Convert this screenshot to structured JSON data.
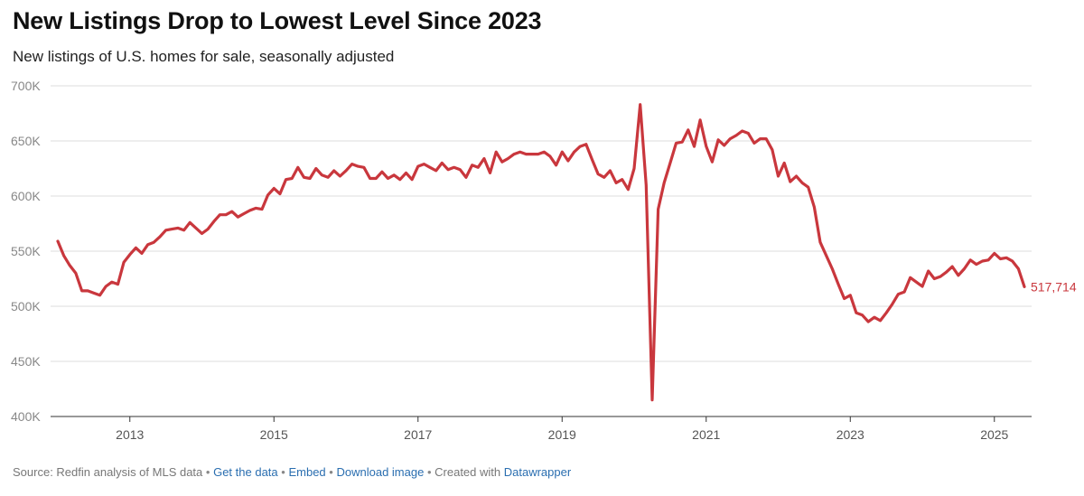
{
  "title": "New Listings Drop to Lowest Level Since 2023",
  "subtitle": "New listings of U.S. homes for sale, seasonally adjusted",
  "colors": {
    "line": "#c9373d",
    "grid": "#dddddd",
    "axis_text": "#888888",
    "link": "#2a6eb0"
  },
  "chart_data": {
    "type": "line",
    "title": "New Listings Drop to Lowest Level Since 2023",
    "subtitle": "New listings of U.S. homes for sale, seasonally adjusted",
    "xlabel": "",
    "ylabel": "",
    "xlim": [
      "2012-01",
      "2025-06"
    ],
    "ylim": [
      400000,
      700000
    ],
    "y_ticks": [
      {
        "value": 400000,
        "label": "400K"
      },
      {
        "value": 450000,
        "label": "450K"
      },
      {
        "value": 500000,
        "label": "500K"
      },
      {
        "value": 550000,
        "label": "550K"
      },
      {
        "value": 600000,
        "label": "600K"
      },
      {
        "value": 650000,
        "label": "650K"
      },
      {
        "value": 700000,
        "label": "700K"
      }
    ],
    "x_ticks": [
      {
        "value": "2013-01",
        "label": "2013"
      },
      {
        "value": "2015-01",
        "label": "2015"
      },
      {
        "value": "2017-01",
        "label": "2017"
      },
      {
        "value": "2019-01",
        "label": "2019"
      },
      {
        "value": "2021-01",
        "label": "2021"
      },
      {
        "value": "2023-01",
        "label": "2023"
      },
      {
        "value": "2025-01",
        "label": "2025"
      }
    ],
    "grid": "horizontal",
    "end_label": "517,714",
    "series": [
      {
        "name": "",
        "points": [
          [
            "2012-01",
            559000
          ],
          [
            "2012-02",
            546000
          ],
          [
            "2012-03",
            537000
          ],
          [
            "2012-04",
            530000
          ],
          [
            "2012-05",
            514000
          ],
          [
            "2012-06",
            514000
          ],
          [
            "2012-07",
            512000
          ],
          [
            "2012-08",
            510000
          ],
          [
            "2012-09",
            518000
          ],
          [
            "2012-10",
            522000
          ],
          [
            "2012-11",
            520000
          ],
          [
            "2012-12",
            540000
          ],
          [
            "2013-01",
            547000
          ],
          [
            "2013-02",
            553000
          ],
          [
            "2013-03",
            548000
          ],
          [
            "2013-04",
            556000
          ],
          [
            "2013-05",
            558000
          ],
          [
            "2013-06",
            563000
          ],
          [
            "2013-07",
            569000
          ],
          [
            "2013-08",
            570000
          ],
          [
            "2013-09",
            571000
          ],
          [
            "2013-10",
            569000
          ],
          [
            "2013-11",
            576000
          ],
          [
            "2013-12",
            571000
          ],
          [
            "2014-01",
            566000
          ],
          [
            "2014-02",
            570000
          ],
          [
            "2014-03",
            577000
          ],
          [
            "2014-04",
            583000
          ],
          [
            "2014-05",
            583000
          ],
          [
            "2014-06",
            586000
          ],
          [
            "2014-07",
            581000
          ],
          [
            "2014-08",
            584000
          ],
          [
            "2014-09",
            587000
          ],
          [
            "2014-10",
            589000
          ],
          [
            "2014-11",
            588000
          ],
          [
            "2014-12",
            601000
          ],
          [
            "2015-01",
            607000
          ],
          [
            "2015-02",
            602000
          ],
          [
            "2015-03",
            615000
          ],
          [
            "2015-04",
            616000
          ],
          [
            "2015-05",
            626000
          ],
          [
            "2015-06",
            617000
          ],
          [
            "2015-07",
            616000
          ],
          [
            "2015-08",
            625000
          ],
          [
            "2015-09",
            619000
          ],
          [
            "2015-10",
            617000
          ],
          [
            "2015-11",
            623000
          ],
          [
            "2015-12",
            618000
          ],
          [
            "2016-01",
            623000
          ],
          [
            "2016-02",
            629000
          ],
          [
            "2016-03",
            627000
          ],
          [
            "2016-04",
            626000
          ],
          [
            "2016-05",
            616000
          ],
          [
            "2016-06",
            616000
          ],
          [
            "2016-07",
            622000
          ],
          [
            "2016-08",
            616000
          ],
          [
            "2016-09",
            619000
          ],
          [
            "2016-10",
            615000
          ],
          [
            "2016-11",
            621000
          ],
          [
            "2016-12",
            615000
          ],
          [
            "2017-01",
            627000
          ],
          [
            "2017-02",
            629000
          ],
          [
            "2017-03",
            626000
          ],
          [
            "2017-04",
            623000
          ],
          [
            "2017-05",
            630000
          ],
          [
            "2017-06",
            624000
          ],
          [
            "2017-07",
            626000
          ],
          [
            "2017-08",
            624000
          ],
          [
            "2017-09",
            617000
          ],
          [
            "2017-10",
            628000
          ],
          [
            "2017-11",
            626000
          ],
          [
            "2017-12",
            634000
          ],
          [
            "2018-01",
            621000
          ],
          [
            "2018-02",
            640000
          ],
          [
            "2018-03",
            631000
          ],
          [
            "2018-04",
            634000
          ],
          [
            "2018-05",
            638000
          ],
          [
            "2018-06",
            640000
          ],
          [
            "2018-07",
            638000
          ],
          [
            "2018-08",
            638000
          ],
          [
            "2018-09",
            638000
          ],
          [
            "2018-10",
            640000
          ],
          [
            "2018-11",
            636000
          ],
          [
            "2018-12",
            628000
          ],
          [
            "2019-01",
            640000
          ],
          [
            "2019-02",
            632000
          ],
          [
            "2019-03",
            640000
          ],
          [
            "2019-04",
            645000
          ],
          [
            "2019-05",
            647000
          ],
          [
            "2019-06",
            633000
          ],
          [
            "2019-07",
            620000
          ],
          [
            "2019-08",
            617000
          ],
          [
            "2019-09",
            623000
          ],
          [
            "2019-10",
            612000
          ],
          [
            "2019-11",
            615000
          ],
          [
            "2019-12",
            606000
          ],
          [
            "2020-01",
            625000
          ],
          [
            "2020-02",
            683000
          ],
          [
            "2020-03",
            610000
          ],
          [
            "2020-04",
            415000
          ],
          [
            "2020-05",
            588000
          ],
          [
            "2020-06",
            612000
          ],
          [
            "2020-07",
            630000
          ],
          [
            "2020-08",
            648000
          ],
          [
            "2020-09",
            649000
          ],
          [
            "2020-10",
            660000
          ],
          [
            "2020-11",
            645000
          ],
          [
            "2020-12",
            669000
          ],
          [
            "2021-01",
            645000
          ],
          [
            "2021-02",
            631000
          ],
          [
            "2021-03",
            651000
          ],
          [
            "2021-04",
            646000
          ],
          [
            "2021-05",
            652000
          ],
          [
            "2021-06",
            655000
          ],
          [
            "2021-07",
            659000
          ],
          [
            "2021-08",
            657000
          ],
          [
            "2021-09",
            648000
          ],
          [
            "2021-10",
            652000
          ],
          [
            "2021-11",
            652000
          ],
          [
            "2021-12",
            642000
          ],
          [
            "2022-01",
            618000
          ],
          [
            "2022-02",
            630000
          ],
          [
            "2022-03",
            613000
          ],
          [
            "2022-04",
            618000
          ],
          [
            "2022-05",
            612000
          ],
          [
            "2022-06",
            608000
          ],
          [
            "2022-07",
            590000
          ],
          [
            "2022-08",
            558000
          ],
          [
            "2022-09",
            546000
          ],
          [
            "2022-10",
            534000
          ],
          [
            "2022-11",
            520000
          ],
          [
            "2022-12",
            507000
          ],
          [
            "2023-01",
            510000
          ],
          [
            "2023-02",
            494000
          ],
          [
            "2023-03",
            492000
          ],
          [
            "2023-04",
            486000
          ],
          [
            "2023-05",
            490000
          ],
          [
            "2023-06",
            487000
          ],
          [
            "2023-07",
            494000
          ],
          [
            "2023-08",
            502000
          ],
          [
            "2023-09",
            511000
          ],
          [
            "2023-10",
            513000
          ],
          [
            "2023-11",
            526000
          ],
          [
            "2023-12",
            522000
          ],
          [
            "2024-01",
            518000
          ],
          [
            "2024-02",
            532000
          ],
          [
            "2024-03",
            525000
          ],
          [
            "2024-04",
            527000
          ],
          [
            "2024-05",
            531000
          ],
          [
            "2024-06",
            536000
          ],
          [
            "2024-07",
            528000
          ],
          [
            "2024-08",
            534000
          ],
          [
            "2024-09",
            542000
          ],
          [
            "2024-10",
            538000
          ],
          [
            "2024-11",
            541000
          ],
          [
            "2024-12",
            542000
          ],
          [
            "2025-01",
            548000
          ],
          [
            "2025-02",
            543000
          ],
          [
            "2025-03",
            544000
          ],
          [
            "2025-04",
            541000
          ],
          [
            "2025-05",
            534000
          ],
          [
            "2025-06",
            517714
          ]
        ]
      }
    ]
  },
  "footer": {
    "source": "Source: Redfin analysis of MLS data",
    "sep": "•",
    "get_data": "Get the data",
    "embed": "Embed",
    "download": "Download image",
    "created_with": "Created with",
    "datawrapper": "Datawrapper"
  }
}
